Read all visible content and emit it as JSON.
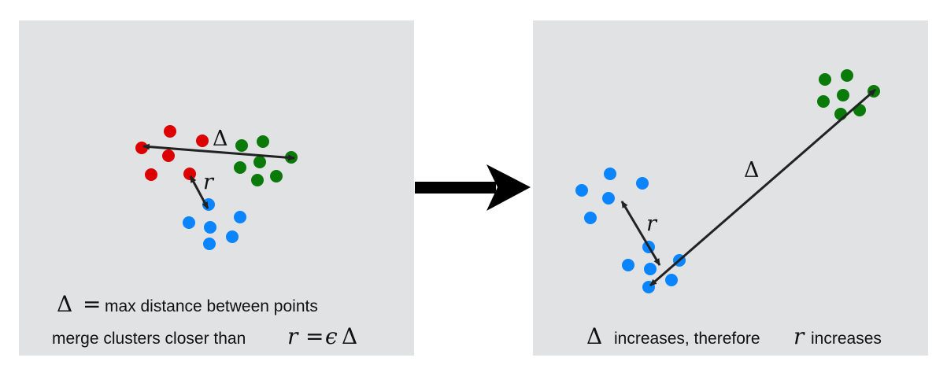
{
  "colors": {
    "panel": "#e1e2e4",
    "red": "#dd0000",
    "green": "#0a7a0a",
    "blue": "#0a84ff",
    "ink": "#222222"
  },
  "symbols": {
    "delta": "Δ",
    "r": "r",
    "epsilon": "ϵ",
    "equals": "="
  },
  "left_panel": {
    "caption_line1": "max distance between points",
    "caption_line2": "merge clusters closer than"
  },
  "right_panel": {
    "caption_part1": "increases, therefore",
    "caption_part2": "increases"
  },
  "transition": {
    "icon": "right-arrow-icon"
  }
}
